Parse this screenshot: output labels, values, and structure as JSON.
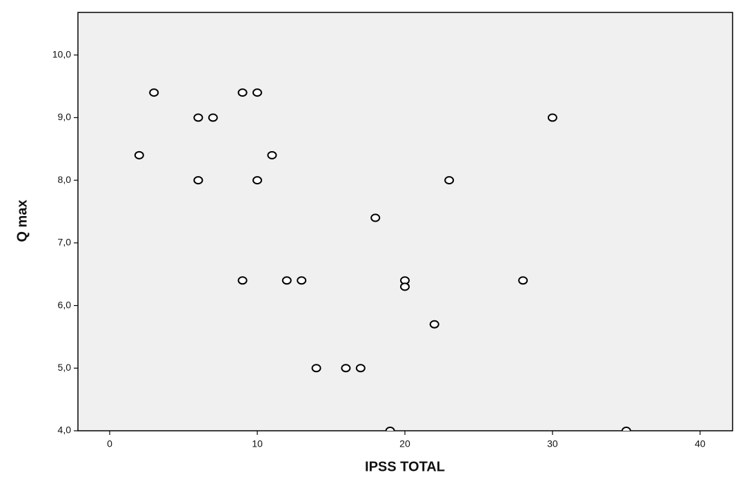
{
  "chart_data": {
    "type": "scatter",
    "x_label": "IPSS TOTAL",
    "y_label": "Q max",
    "x": [
      2,
      3,
      6,
      7,
      6,
      9,
      10,
      11,
      10,
      18,
      23,
      30,
      9,
      12,
      13,
      20,
      20,
      28,
      22,
      14,
      16,
      17,
      19,
      35
    ],
    "values": [
      8.4,
      9.4,
      9,
      9,
      8,
      9.4,
      9.4,
      8.4,
      8,
      7.4,
      8,
      9,
      6.4,
      6.4,
      6.4,
      6.4,
      6.3,
      6.4,
      5.7,
      5,
      5,
      5,
      4,
      4
    ],
    "color": "#000000",
    "background": "#f0f0f0",
    "xlim": [
      -2.15,
      42.2
    ],
    "xticks": [
      0,
      10,
      20,
      30,
      40
    ],
    "ylim": [
      4,
      10.68
    ],
    "yticks": [
      {
        "value": 4,
        "label": "4,0"
      },
      {
        "value": 5,
        "label": "5,0"
      },
      {
        "value": 6,
        "label": "6,0"
      },
      {
        "value": 7,
        "label": "7,0"
      },
      {
        "value": 8,
        "label": "8,0"
      },
      {
        "value": 9,
        "label": "9,0"
      },
      {
        "value": 10,
        "label": "10,0"
      }
    ],
    "grid": false
  }
}
